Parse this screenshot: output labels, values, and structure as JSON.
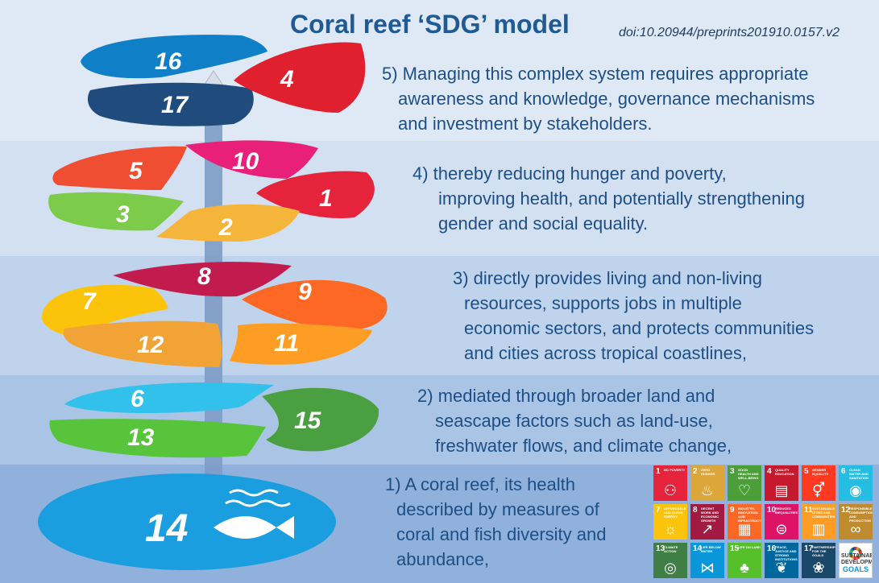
{
  "title": "Coral reef ‘SDG’ model",
  "doi": "doi:10.20944/preprints201910.0157.v2",
  "levels": [
    {
      "lines": [
        "1) A coral reef, its health",
        "described by measures of",
        "coral and fish diversity and",
        "abundance,"
      ]
    },
    {
      "lines": [
        "2) mediated through broader land and",
        "seascape factors such as land-use,",
        "freshwater flows, and climate change,"
      ]
    },
    {
      "lines": [
        "3) directly provides living and non-living",
        "resources, supports jobs in multiple",
        "economic sectors, and protects communities",
        "and cities across tropical coastlines,"
      ]
    },
    {
      "lines": [
        "4) thereby reducing hunger and poverty,",
        "improving health, and potentially strengthening",
        "gender and social equality."
      ]
    },
    {
      "lines": [
        "5) Managing this complex system requires appropriate",
        "awareness and knowledge, governance mechanisms",
        "and investment by stakeholders."
      ]
    }
  ],
  "petals": {
    "p14": "14",
    "p6": "6",
    "p13": "13",
    "p15": "15",
    "p8": "8",
    "p7": "7",
    "p9": "9",
    "p12": "12",
    "p11": "11",
    "p5": "5",
    "p10": "10",
    "p1": "1",
    "p3": "3",
    "p2": "2",
    "p16": "16",
    "p17": "17",
    "p4": "4"
  },
  "colors": {
    "sdg1": "#e5243b",
    "sdg2": "#dda63a",
    "sdg3": "#4c9f38",
    "sdg4": "#c5192d",
    "sdg5": "#ff3a21",
    "sdg6": "#26bde2",
    "sdg7": "#fcc30b",
    "sdg8": "#a21942",
    "sdg9": "#fd6925",
    "sdg10": "#dd1367",
    "sdg11": "#fd9d24",
    "sdg12": "#bf8b2e",
    "sdg13": "#3f7e44",
    "sdg14": "#0a97d9",
    "sdg15": "#56c02b",
    "sdg16": "#00689d",
    "sdg17": "#19486a"
  },
  "sdg_tiles": [
    {
      "n": "1",
      "t": "NO POVERTY",
      "c": "#e5243b",
      "icon": "family-icon"
    },
    {
      "n": "2",
      "t": "ZERO HUNGER",
      "c": "#dda63a",
      "icon": "bowl-icon"
    },
    {
      "n": "3",
      "t": "GOOD HEALTH AND WELL-BEING",
      "c": "#4c9f38",
      "icon": "heartbeat-icon"
    },
    {
      "n": "4",
      "t": "QUALITY EDUCATION",
      "c": "#c5192d",
      "icon": "book-icon"
    },
    {
      "n": "5",
      "t": "GENDER EQUALITY",
      "c": "#ff3a21",
      "icon": "gender-icon"
    },
    {
      "n": "6",
      "t": "CLEAN WATER AND SANITATION",
      "c": "#26bde2",
      "icon": "water-drop-icon"
    },
    {
      "n": "7",
      "t": "AFFORDABLE AND CLEAN ENERGY",
      "c": "#fcc30b",
      "icon": "sun-icon"
    },
    {
      "n": "8",
      "t": "DECENT WORK AND ECONOMIC GROWTH",
      "c": "#a21942",
      "icon": "growth-chart-icon"
    },
    {
      "n": "9",
      "t": "INDUSTRY, INNOVATION AND INFRASTRUCTURE",
      "c": "#fd6925",
      "icon": "cubes-icon"
    },
    {
      "n": "10",
      "t": "REDUCED INEQUALITIES",
      "c": "#dd1367",
      "icon": "equal-icon"
    },
    {
      "n": "11",
      "t": "SUSTAINABLE CITIES AND COMMUNITIES",
      "c": "#fd9d24",
      "icon": "city-icon"
    },
    {
      "n": "12",
      "t": "RESPONSIBLE CONSUMPTION AND PRODUCTION",
      "c": "#bf8b2e",
      "icon": "infinity-icon"
    },
    {
      "n": "13",
      "t": "CLIMATE ACTION",
      "c": "#3f7e44",
      "icon": "eye-icon"
    },
    {
      "n": "14",
      "t": "LIFE BELOW WATER",
      "c": "#0a97d9",
      "icon": "fish-icon"
    },
    {
      "n": "15",
      "t": "LIFE ON LAND",
      "c": "#56c02b",
      "icon": "tree-icon"
    },
    {
      "n": "16",
      "t": "PEACE, JUSTICE AND STRONG INSTITUTIONS",
      "c": "#00689d",
      "icon": "dove-icon"
    },
    {
      "n": "17",
      "t": "PARTNERSHIPS FOR THE GOALS",
      "c": "#19486a",
      "icon": "flower-icon"
    }
  ],
  "sdg_tile_icons": {
    "family-icon": "⚇",
    "bowl-icon": "♨",
    "heartbeat-icon": "♡",
    "book-icon": "▤",
    "gender-icon": "⚥",
    "water-drop-icon": "◉",
    "sun-icon": "☼",
    "growth-chart-icon": "↗",
    "cubes-icon": "▦",
    "equal-icon": "⊜",
    "city-icon": "▥",
    "infinity-icon": "∞",
    "eye-icon": "◎",
    "fish-icon": "⋈",
    "tree-icon": "♣",
    "dove-icon": "❦",
    "flower-icon": "❀"
  },
  "sdg_logo": {
    "line1": "SUSTAINABLE",
    "line2": "DEVELOPMENT",
    "line3": "GOALS"
  }
}
